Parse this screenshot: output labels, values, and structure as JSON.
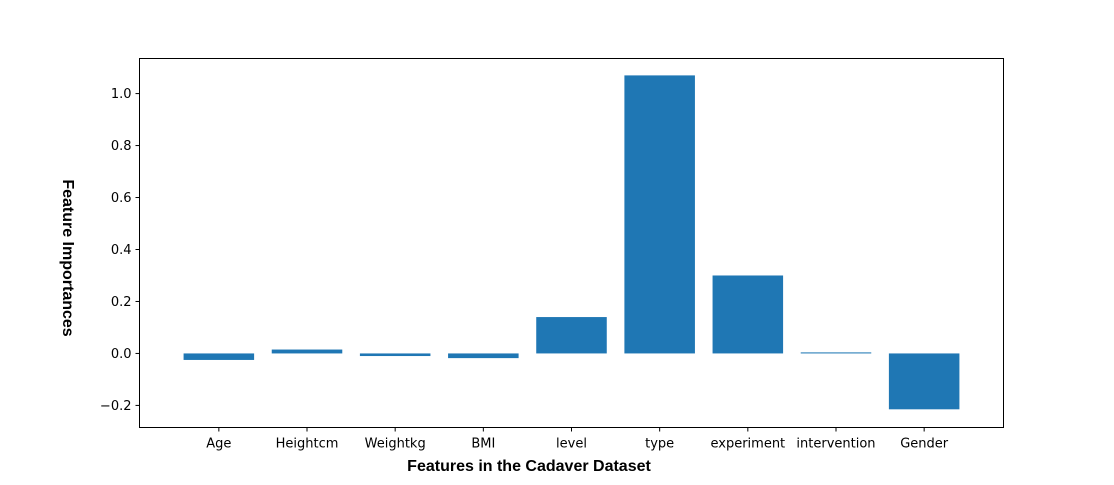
{
  "chart_data": {
    "type": "bar",
    "categories": [
      "Age",
      "Heightcm",
      "Weightkg",
      "BMI",
      "level",
      "type",
      "experiment",
      "intervention",
      "Gender"
    ],
    "values": [
      -0.025,
      0.015,
      -0.01,
      -0.018,
      0.14,
      1.07,
      0.3,
      0.004,
      -0.215
    ],
    "xlabel": "Features in the Cadaver Dataset",
    "ylabel": "Feature Importances",
    "ylim": [
      -0.285,
      1.135
    ],
    "yticks": [
      -0.2,
      0.0,
      0.2,
      0.4,
      0.6,
      0.8,
      1.0
    ],
    "ytick_labels": [
      "−0.2",
      "0.0",
      "0.2",
      "0.4",
      "0.6",
      "0.8",
      "1.0"
    ],
    "bar_color": "#1f77b4",
    "grid": false
  }
}
